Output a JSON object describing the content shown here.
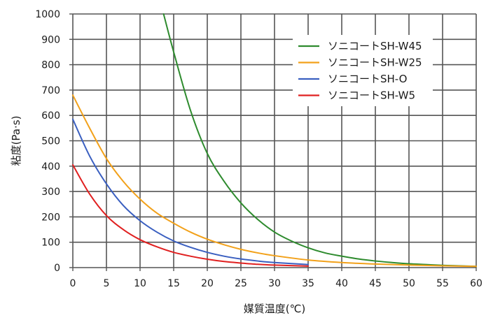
{
  "chart_data": {
    "type": "line",
    "xlabel": "媒質温度(℃)",
    "ylabel": "粘度(Pa·s)",
    "xlim": [
      0,
      60
    ],
    "ylim": [
      0,
      1000
    ],
    "xticks": [
      0,
      5,
      10,
      15,
      20,
      25,
      30,
      35,
      40,
      45,
      50,
      55,
      60
    ],
    "yticks": [
      0,
      100,
      200,
      300,
      400,
      500,
      600,
      700,
      800,
      900,
      1000
    ],
    "grid": true,
    "legend_position": "top-right",
    "series": [
      {
        "name": "ソニコートSH-W45",
        "color": "#2e8b2e",
        "x": [
          13.5,
          15,
          17.5,
          20,
          22.5,
          25,
          27.5,
          30,
          32.5,
          35,
          37.5,
          40,
          42.5,
          45,
          47.5,
          50,
          52.5,
          55,
          57.5,
          60
        ],
        "y": [
          1000,
          850,
          620,
          450,
          340,
          255,
          190,
          140,
          105,
          78,
          58,
          45,
          34,
          26,
          20,
          15,
          12,
          9,
          7,
          5
        ]
      },
      {
        "name": "ソニコートSH-W25",
        "color": "#f2a11a",
        "x": [
          0,
          2.5,
          5,
          7.5,
          10,
          12.5,
          15,
          17.5,
          20,
          22.5,
          25,
          27.5,
          30,
          35,
          40,
          45,
          50,
          55,
          60
        ],
        "y": [
          680,
          550,
          430,
          340,
          270,
          215,
          175,
          140,
          112,
          90,
          72,
          58,
          47,
          30,
          20,
          14,
          10,
          7,
          5
        ]
      },
      {
        "name": "ソニコートSH-O",
        "color": "#3a5fc0",
        "x": [
          0,
          2.5,
          5,
          7.5,
          10,
          12.5,
          15,
          17.5,
          20,
          22.5,
          25,
          27.5,
          30,
          35
        ],
        "y": [
          585,
          440,
          330,
          245,
          185,
          140,
          105,
          80,
          60,
          45,
          34,
          26,
          20,
          12
        ]
      },
      {
        "name": "ソニコートSH-W5",
        "color": "#e02020",
        "x": [
          0,
          2.5,
          5,
          7.5,
          10,
          12.5,
          15,
          17.5,
          20,
          22.5,
          25,
          27.5,
          30,
          35
        ],
        "y": [
          405,
          290,
          205,
          150,
          110,
          82,
          60,
          45,
          33,
          24,
          18,
          13,
          10,
          6
        ]
      }
    ]
  }
}
